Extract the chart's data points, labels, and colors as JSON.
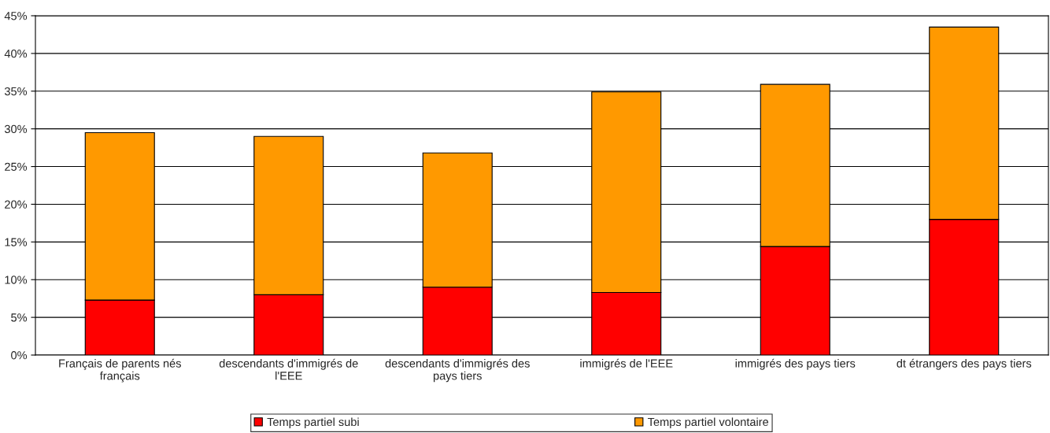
{
  "chart_data": {
    "type": "bar",
    "stacked": true,
    "categories": [
      "Français de parents nés français",
      "descendants d'immigrés de l'EEE",
      "descendants d'immigrés des pays tiers",
      "immigrés de l'EEE",
      "immigrés des pays tiers",
      "dt étrangers des pays tiers"
    ],
    "series": [
      {
        "name": "Temps partiel subi",
        "color": "#ff0000",
        "values": [
          7.3,
          8.0,
          9.0,
          8.3,
          14.4,
          18.0
        ]
      },
      {
        "name": "Temps partiel volontaire",
        "color": "#ff9900",
        "values": [
          22.2,
          21.0,
          17.8,
          26.6,
          21.5,
          25.5
        ]
      }
    ],
    "ylim": [
      0,
      45
    ],
    "yticks": [
      {
        "value": 0,
        "label": "0%"
      },
      {
        "value": 5,
        "label": "5%"
      },
      {
        "value": 10,
        "label": "10%"
      },
      {
        "value": 15,
        "label": "15%"
      },
      {
        "value": 20,
        "label": "20%"
      },
      {
        "value": 25,
        "label": "25%"
      },
      {
        "value": 30,
        "label": "30%"
      },
      {
        "value": 35,
        "label": "35%"
      },
      {
        "value": 40,
        "label": "40%"
      },
      {
        "value": 45,
        "label": "45%"
      }
    ],
    "grid": "y",
    "legend": "bottom"
  }
}
